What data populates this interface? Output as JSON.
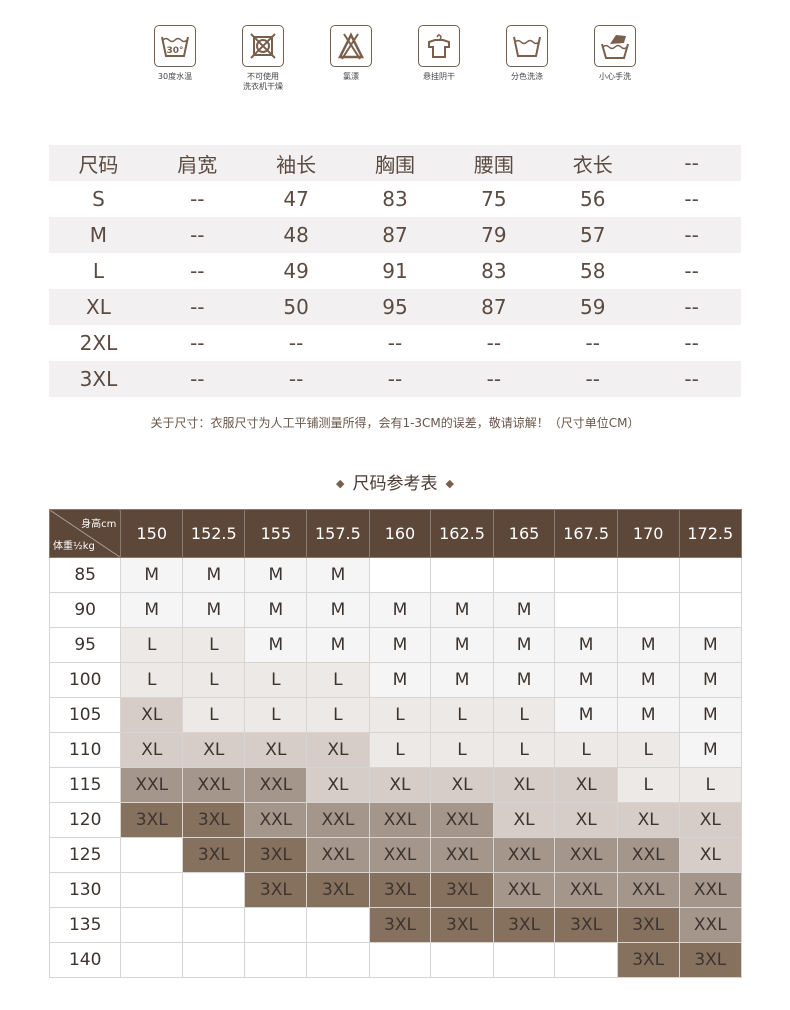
{
  "care": [
    {
      "icon": "wash-30-icon",
      "label": "30度水温"
    },
    {
      "icon": "no-tumble-dry-icon",
      "label": "不可使用\n洗衣机干燥"
    },
    {
      "icon": "no-bleach-icon",
      "label": "氯漂"
    },
    {
      "icon": "hang-dry-icon",
      "label": "悬挂阴干"
    },
    {
      "icon": "wash-separately-icon",
      "label": "分色洗涤"
    },
    {
      "icon": "hand-wash-icon",
      "label": "小心手洗"
    }
  ],
  "size_table": {
    "headers": [
      "尺码",
      "肩宽",
      "袖长",
      "胸围",
      "腰围",
      "衣长",
      "--"
    ],
    "rows": [
      [
        "S",
        "--",
        "47",
        "83",
        "75",
        "56",
        "--"
      ],
      [
        "M",
        "--",
        "48",
        "87",
        "79",
        "57",
        "--"
      ],
      [
        "L",
        "--",
        "49",
        "91",
        "83",
        "58",
        "--"
      ],
      [
        "XL",
        "--",
        "50",
        "95",
        "87",
        "59",
        "--"
      ],
      [
        "2XL",
        "--",
        "--",
        "--",
        "--",
        "--",
        "--"
      ],
      [
        "3XL",
        "--",
        "--",
        "--",
        "--",
        "--",
        "--"
      ]
    ]
  },
  "note": "关于尺寸：衣服尺寸为人工平铺测量所得，会有1-3CM的误差，敬请谅解！（尺寸单位CM）",
  "ref_title": "尺码参考表",
  "ref_table": {
    "corner_height": "身高cm",
    "corner_weight": "体重½kg",
    "heights": [
      "150",
      "152.5",
      "155",
      "157.5",
      "160",
      "162.5",
      "165",
      "167.5",
      "170",
      "172.5"
    ],
    "rows": [
      {
        "w": "85",
        "s": [
          "M",
          "M",
          "M",
          "M",
          "",
          "",
          "",
          "",
          "",
          ""
        ]
      },
      {
        "w": "90",
        "s": [
          "M",
          "M",
          "M",
          "M",
          "M",
          "M",
          "M",
          "",
          "",
          ""
        ]
      },
      {
        "w": "95",
        "s": [
          "L",
          "L",
          "M",
          "M",
          "M",
          "M",
          "M",
          "M",
          "M",
          "M"
        ]
      },
      {
        "w": "100",
        "s": [
          "L",
          "L",
          "L",
          "L",
          "M",
          "M",
          "M",
          "M",
          "M",
          "M"
        ]
      },
      {
        "w": "105",
        "s": [
          "XL",
          "L",
          "L",
          "L",
          "L",
          "L",
          "L",
          "M",
          "M",
          "M"
        ]
      },
      {
        "w": "110",
        "s": [
          "XL",
          "XL",
          "XL",
          "XL",
          "L",
          "L",
          "L",
          "L",
          "L",
          "M"
        ]
      },
      {
        "w": "115",
        "s": [
          "XXL",
          "XXL",
          "XXL",
          "XL",
          "XL",
          "XL",
          "XL",
          "XL",
          "L",
          "L"
        ]
      },
      {
        "w": "120",
        "s": [
          "3XL",
          "3XL",
          "XXL",
          "XXL",
          "XXL",
          "XXL",
          "XL",
          "XL",
          "XL",
          "XL"
        ]
      },
      {
        "w": "125",
        "s": [
          "",
          "3XL",
          "3XL",
          "XXL",
          "XXL",
          "XXL",
          "XXL",
          "XXL",
          "XXL",
          "XL"
        ]
      },
      {
        "w": "130",
        "s": [
          "",
          "",
          "3XL",
          "3XL",
          "3XL",
          "3XL",
          "XXL",
          "XXL",
          "XXL",
          "XXL"
        ]
      },
      {
        "w": "135",
        "s": [
          "",
          "",
          "",
          "",
          "3XL",
          "3XL",
          "3XL",
          "3XL",
          "3XL",
          "XXL"
        ]
      },
      {
        "w": "140",
        "s": [
          "",
          "",
          "",
          "",
          "",
          "",
          "",
          "",
          "3XL",
          "3XL"
        ]
      }
    ]
  },
  "colors": {
    "header": "#5c4738",
    "M": "#f5f5f5",
    "L": "#ede9e6",
    "XL": "#d6cdc8",
    "XXL": "#a5968b",
    "3XL": "#86715f"
  }
}
